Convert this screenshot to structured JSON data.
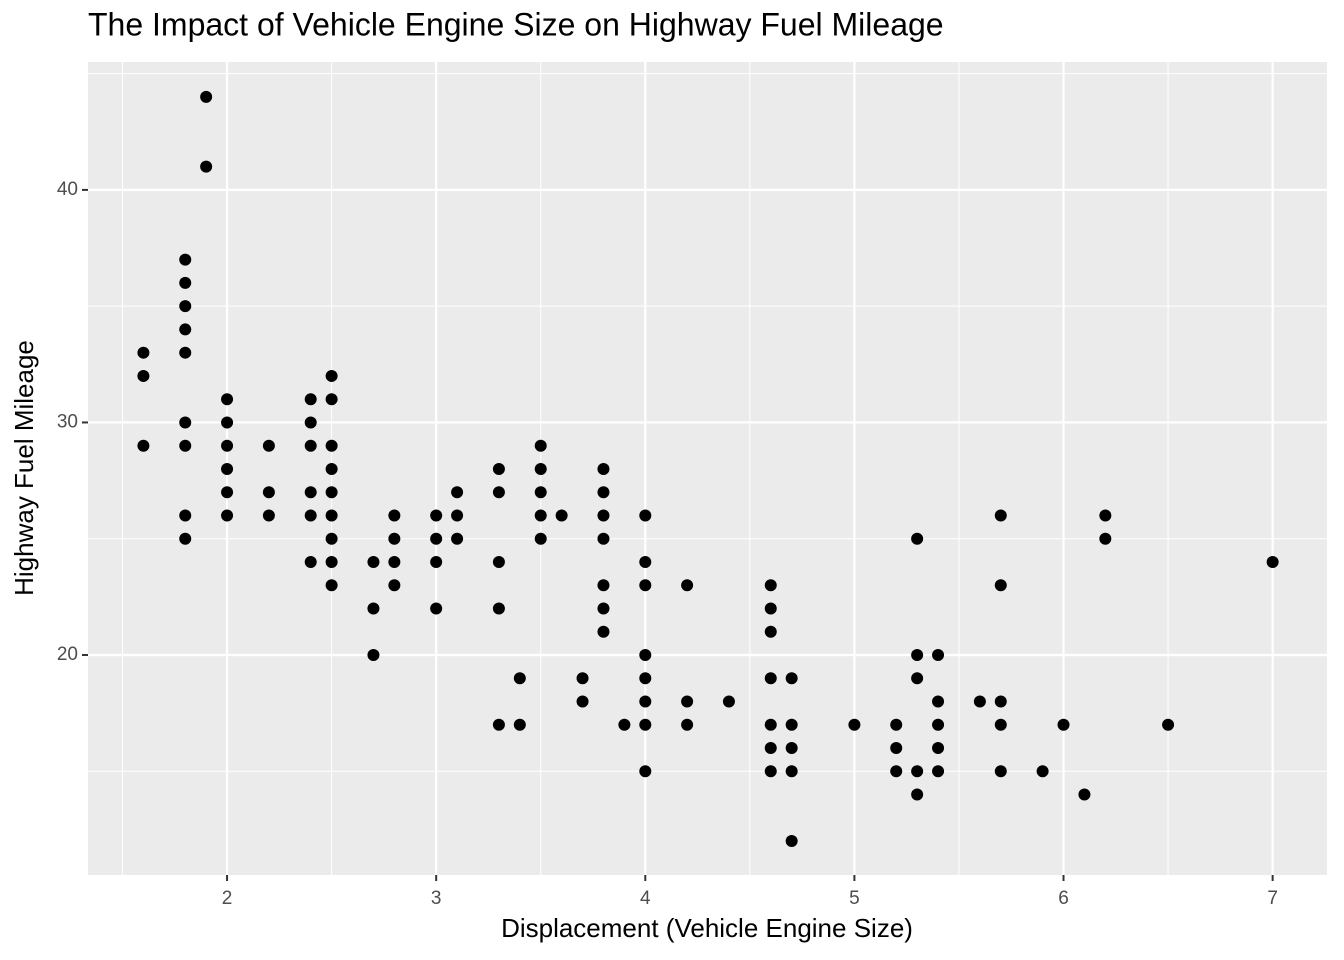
{
  "chart_data": {
    "type": "scatter",
    "title": "The Impact of Vehicle Engine Size on Highway Fuel Mileage",
    "x_label": "Displacement (Vehicle Engine Size)",
    "y_label": "Highway Fuel Mileage",
    "color": "#000000",
    "grid": true,
    "xlim": [
      1.335,
      7.26
    ],
    "ylim": [
      10.54,
      45.5
    ],
    "xticks": [
      2,
      3,
      4,
      5,
      6,
      7
    ],
    "yticks": [
      20,
      30,
      40
    ],
    "x": [
      1.6,
      1.6,
      1.6,
      1.8,
      1.8,
      1.8,
      1.8,
      1.8,
      1.8,
      1.8,
      1.8,
      1.8,
      1.9,
      1.9,
      2.0,
      2.0,
      2.0,
      2.0,
      2.0,
      2.0,
      2.2,
      2.2,
      2.2,
      2.4,
      2.4,
      2.4,
      2.4,
      2.4,
      2.4,
      2.5,
      2.5,
      2.5,
      2.5,
      2.5,
      2.5,
      2.5,
      2.5,
      2.5,
      2.7,
      2.7,
      2.7,
      2.8,
      2.8,
      2.8,
      2.8,
      3.0,
      3.0,
      3.0,
      3.0,
      3.1,
      3.1,
      3.1,
      3.3,
      3.3,
      3.3,
      3.3,
      3.3,
      3.4,
      3.4,
      3.5,
      3.5,
      3.5,
      3.5,
      3.5,
      3.6,
      3.7,
      3.7,
      3.8,
      3.8,
      3.8,
      3.8,
      3.8,
      3.8,
      3.8,
      3.9,
      4.0,
      4.0,
      4.0,
      4.0,
      4.0,
      4.0,
      4.0,
      4.0,
      4.2,
      4.2,
      4.2,
      4.4,
      4.6,
      4.6,
      4.6,
      4.6,
      4.6,
      4.6,
      4.6,
      4.7,
      4.7,
      4.7,
      4.7,
      4.7,
      5.0,
      5.2,
      5.2,
      5.2,
      5.3,
      5.3,
      5.3,
      5.3,
      5.3,
      5.4,
      5.4,
      5.4,
      5.4,
      5.4,
      5.6,
      5.7,
      5.7,
      5.7,
      5.7,
      5.7,
      5.9,
      6.0,
      6.1,
      6.2,
      6.2,
      6.5,
      7.0
    ],
    "values": [
      33,
      32,
      29,
      37,
      36,
      35,
      34,
      33,
      30,
      29,
      26,
      25,
      44,
      41,
      31,
      30,
      29,
      28,
      27,
      26,
      29,
      27,
      26,
      31,
      30,
      29,
      27,
      26,
      24,
      32,
      31,
      29,
      28,
      27,
      26,
      25,
      24,
      23,
      24,
      22,
      20,
      26,
      25,
      24,
      23,
      26,
      25,
      24,
      22,
      27,
      26,
      25,
      28,
      27,
      24,
      22,
      17,
      19,
      17,
      29,
      28,
      27,
      26,
      25,
      26,
      19,
      18,
      28,
      27,
      26,
      25,
      23,
      22,
      21,
      17,
      26,
      24,
      23,
      20,
      19,
      18,
      17,
      15,
      23,
      18,
      17,
      18,
      23,
      22,
      21,
      19,
      17,
      16,
      15,
      19,
      17,
      16,
      15,
      12,
      17,
      17,
      16,
      15,
      25,
      20,
      19,
      15,
      14,
      20,
      18,
      17,
      16,
      15,
      18,
      26,
      23,
      18,
      17,
      15,
      15,
      17,
      14,
      26,
      25,
      17,
      24
    ]
  }
}
